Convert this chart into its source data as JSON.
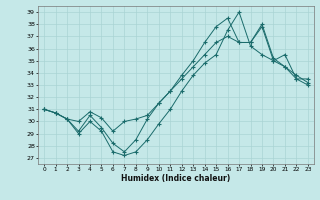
{
  "xlabel": "Humidex (Indice chaleur)",
  "background_color": "#c5e8e8",
  "grid_color": "#aad4d4",
  "line_color": "#1a6b6b",
  "xlim": [
    -0.5,
    23.5
  ],
  "ylim": [
    26.5,
    39.5
  ],
  "yticks": [
    27,
    28,
    29,
    30,
    31,
    32,
    33,
    34,
    35,
    36,
    37,
    38,
    39
  ],
  "xticks": [
    0,
    1,
    2,
    3,
    4,
    5,
    6,
    7,
    8,
    9,
    10,
    11,
    12,
    13,
    14,
    15,
    16,
    17,
    18,
    19,
    20,
    21,
    22,
    23
  ],
  "line1_x": [
    0,
    1,
    2,
    3,
    4,
    5,
    6,
    7,
    8,
    9,
    10,
    11,
    12,
    13,
    14,
    15,
    16,
    17,
    18,
    19,
    20,
    21,
    22,
    23
  ],
  "line1_y": [
    31,
    30.7,
    30.2,
    29.0,
    30.0,
    29.2,
    27.5,
    27.2,
    27.5,
    28.5,
    29.8,
    31.0,
    32.5,
    33.8,
    34.8,
    35.5,
    37.5,
    39.0,
    36.2,
    35.5,
    35.0,
    34.5,
    33.8,
    33.2
  ],
  "line2_x": [
    0,
    1,
    2,
    3,
    4,
    5,
    6,
    7,
    8,
    9,
    10,
    11,
    12,
    13,
    14,
    15,
    16,
    17,
    18,
    19,
    20,
    21,
    22,
    23
  ],
  "line2_y": [
    31,
    30.7,
    30.2,
    30.0,
    30.8,
    30.3,
    29.2,
    30.0,
    30.2,
    30.5,
    31.5,
    32.5,
    33.8,
    35.0,
    36.5,
    37.8,
    38.5,
    36.5,
    36.5,
    37.8,
    35.0,
    35.5,
    33.5,
    33.0
  ],
  "line3_x": [
    0,
    1,
    2,
    3,
    4,
    5,
    6,
    7,
    8,
    9,
    10,
    11,
    12,
    13,
    14,
    15,
    16,
    17,
    18,
    19,
    20,
    21,
    22,
    23
  ],
  "line3_y": [
    31,
    30.7,
    30.2,
    29.2,
    30.5,
    29.5,
    28.2,
    27.5,
    28.5,
    30.2,
    31.5,
    32.5,
    33.5,
    34.5,
    35.5,
    36.5,
    37.0,
    36.5,
    36.5,
    38.0,
    35.2,
    34.5,
    33.5,
    33.5
  ]
}
